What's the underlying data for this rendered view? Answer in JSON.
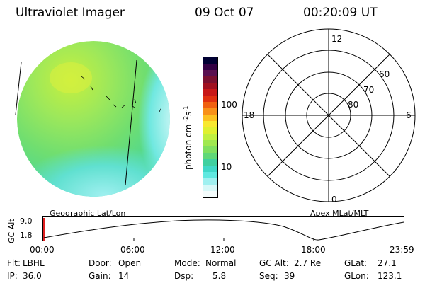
{
  "header": {
    "instrument": "Ultraviolet Imager",
    "date": "09 Oct 07",
    "time": "00:20:09 UT"
  },
  "colorbar": {
    "unit_label": "photon cm",
    "unit_exp1": "-2",
    "unit_s": "s",
    "unit_exp2": "-1",
    "tick_100": "100",
    "tick_10": "10",
    "colors": [
      "#000033",
      "#330044",
      "#5a1050",
      "#7a1030",
      "#a01020",
      "#c81818",
      "#e03010",
      "#f06010",
      "#f89018",
      "#fcc020",
      "#f8e830",
      "#e0f030",
      "#c0f040",
      "#a0e850",
      "#80e060",
      "#60d878",
      "#40d0a0",
      "#40d8c8",
      "#60e8e0",
      "#a0f0f0",
      "#d8f8f8",
      "#f4fcfc"
    ]
  },
  "polar_plot": {
    "mlt_labels": {
      "top": "12",
      "left": "18",
      "right": "6",
      "bottom": "0"
    },
    "lat_labels": [
      "60",
      "70",
      "80"
    ]
  },
  "timeline": {
    "left_title": "Geographic Lat/Lon",
    "right_title": "Apex MLat/MLT",
    "axis_label": "GC Alt",
    "y_max": "9.0",
    "y_min": "1.8",
    "time_ticks": [
      "00:00",
      "06:00",
      "12:00",
      "18:00",
      "23:59"
    ]
  },
  "footer": {
    "flt_label": "Flt:",
    "flt_value": "LBHL",
    "ip_label": "IP:",
    "ip_value": "36.0",
    "door_label": "Door:",
    "door_value": "Open",
    "gain_label": "Gain:",
    "gain_value": "14",
    "mode_label": "Mode:",
    "mode_value": "Normal",
    "dsp_label": "Dsp:",
    "dsp_value": "5.8",
    "gcalt_label": "GC Alt:",
    "gcalt_value": "2.7 Re",
    "seq_label": "Seq:",
    "seq_value": "39",
    "glat_label": "GLat:",
    "glat_value": "27.1",
    "glon_label": "GLon:",
    "glon_value": "123.1"
  }
}
